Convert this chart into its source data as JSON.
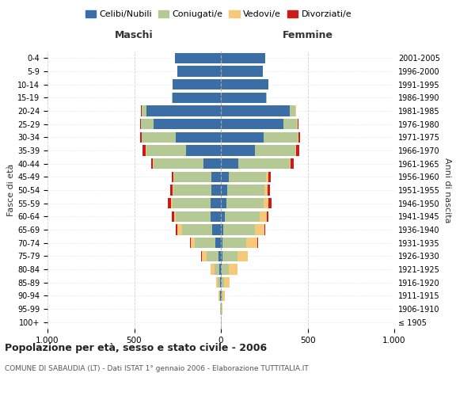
{
  "age_groups": [
    "100+",
    "95-99",
    "90-94",
    "85-89",
    "80-84",
    "75-79",
    "70-74",
    "65-69",
    "60-64",
    "55-59",
    "50-54",
    "45-49",
    "40-44",
    "35-39",
    "30-34",
    "25-29",
    "20-24",
    "15-19",
    "10-14",
    "5-9",
    "0-4"
  ],
  "birth_years": [
    "≤ 1905",
    "1906-1910",
    "1911-1915",
    "1916-1920",
    "1921-1925",
    "1926-1930",
    "1931-1935",
    "1936-1940",
    "1941-1945",
    "1946-1950",
    "1951-1955",
    "1956-1960",
    "1961-1965",
    "1966-1970",
    "1971-1975",
    "1976-1980",
    "1981-1985",
    "1986-1990",
    "1991-1995",
    "1996-2000",
    "2001-2005"
  ],
  "colors": {
    "celibi": "#3a6ea5",
    "coniugati": "#b5c994",
    "vedovi": "#f5c87a",
    "divorziati": "#cc1a1a"
  },
  "maschi": {
    "celibi": [
      2,
      2,
      3,
      5,
      8,
      15,
      30,
      50,
      60,
      60,
      55,
      55,
      100,
      200,
      260,
      390,
      430,
      280,
      280,
      250,
      265
    ],
    "coniugati": [
      0,
      2,
      5,
      12,
      30,
      65,
      120,
      175,
      200,
      220,
      220,
      215,
      290,
      230,
      195,
      70,
      25,
      5,
      0,
      0,
      0
    ],
    "vedovi": [
      0,
      2,
      5,
      10,
      20,
      30,
      25,
      25,
      10,
      8,
      5,
      3,
      2,
      2,
      2,
      2,
      2,
      0,
      0,
      0,
      0
    ],
    "divorziati": [
      0,
      0,
      0,
      0,
      0,
      5,
      5,
      10,
      12,
      18,
      12,
      12,
      12,
      18,
      8,
      5,
      2,
      0,
      0,
      0,
      0
    ]
  },
  "femmine": {
    "celibi": [
      2,
      2,
      3,
      5,
      5,
      10,
      10,
      15,
      25,
      30,
      35,
      45,
      100,
      195,
      245,
      360,
      395,
      260,
      275,
      240,
      255
    ],
    "coniugati": [
      0,
      2,
      5,
      15,
      40,
      85,
      135,
      180,
      200,
      215,
      215,
      215,
      295,
      235,
      200,
      80,
      35,
      5,
      0,
      0,
      0
    ],
    "vedovi": [
      2,
      5,
      15,
      30,
      50,
      60,
      65,
      55,
      40,
      30,
      20,
      12,
      8,
      5,
      3,
      3,
      2,
      0,
      0,
      0,
      0
    ],
    "divorziati": [
      0,
      0,
      0,
      0,
      0,
      2,
      5,
      5,
      10,
      18,
      15,
      15,
      18,
      18,
      10,
      5,
      2,
      0,
      0,
      0,
      0
    ]
  },
  "title": "Popolazione per età, sesso e stato civile - 2006",
  "subtitle": "COMUNE DI SABAUDIA (LT) - Dati ISTAT 1° gennaio 2006 - Elaborazione TUTTITALIA.IT",
  "xlabel_left": "Maschi",
  "xlabel_right": "Femmine",
  "ylabel_left": "Fasce di età",
  "ylabel_right": "Anni di nascita",
  "xlim": 1000,
  "legend_labels": [
    "Celibi/Nubili",
    "Coniugati/e",
    "Vedovi/e",
    "Divorziati/e"
  ],
  "background_color": "#ffffff",
  "bar_height": 0.8
}
